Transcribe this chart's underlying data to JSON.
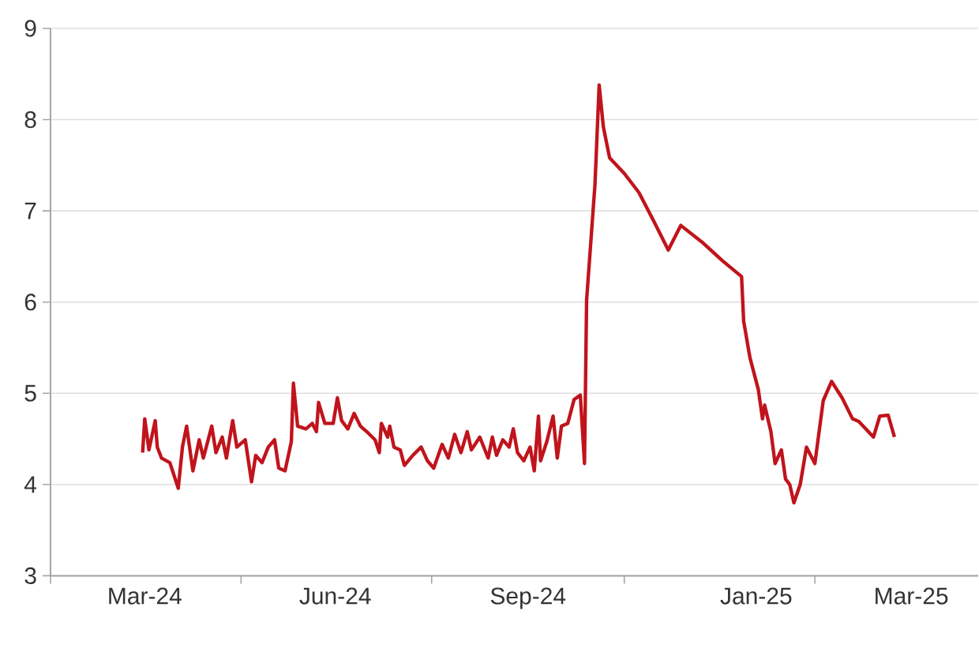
{
  "chart_data": {
    "type": "line",
    "x": [
      "2024-03-14",
      "2024-03-15",
      "2024-03-17",
      "2024-03-20",
      "2024-03-21",
      "2024-03-23",
      "2024-03-27",
      "2024-03-31",
      "2024-04-02",
      "2024-04-04",
      "2024-04-07",
      "2024-04-10",
      "2024-04-12",
      "2024-04-16",
      "2024-04-18",
      "2024-04-21",
      "2024-04-23",
      "2024-04-26",
      "2024-04-28",
      "2024-05-02",
      "2024-05-05",
      "2024-05-07",
      "2024-05-10",
      "2024-05-13",
      "2024-05-16",
      "2024-05-18",
      "2024-05-21",
      "2024-05-24",
      "2024-05-25",
      "2024-05-27",
      "2024-05-31",
      "2024-06-03",
      "2024-06-05",
      "2024-06-06",
      "2024-06-09",
      "2024-06-13",
      "2024-06-15",
      "2024-06-17",
      "2024-06-20",
      "2024-06-23",
      "2024-06-26",
      "2024-06-29",
      "2024-07-03",
      "2024-07-05",
      "2024-07-06",
      "2024-07-09",
      "2024-07-10",
      "2024-07-12",
      "2024-07-15",
      "2024-07-17",
      "2024-07-21",
      "2024-07-25",
      "2024-07-28",
      "2024-07-31",
      "2024-08-04",
      "2024-08-07",
      "2024-08-10",
      "2024-08-13",
      "2024-08-16",
      "2024-08-18",
      "2024-08-22",
      "2024-08-26",
      "2024-08-28",
      "2024-08-30",
      "2024-09-02",
      "2024-09-05",
      "2024-09-07",
      "2024-09-09",
      "2024-09-12",
      "2024-09-15",
      "2024-09-17",
      "2024-09-19",
      "2024-09-20",
      "2024-09-23",
      "2024-09-26",
      "2024-09-28",
      "2024-09-30",
      "2024-10-03",
      "2024-10-06",
      "2024-10-09",
      "2024-10-11",
      "2024-10-12",
      "2024-10-16",
      "2024-10-18",
      "2024-10-20",
      "2024-10-23",
      "2024-10-30",
      "2024-11-06",
      "2024-11-13",
      "2024-11-20",
      "2024-11-26",
      "2024-12-06",
      "2024-12-16",
      "2024-12-25",
      "2024-12-26",
      "2024-12-29",
      "2025-01-02",
      "2025-01-04",
      "2025-01-05",
      "2025-01-08",
      "2025-01-10",
      "2025-01-13",
      "2025-01-15",
      "2025-01-17",
      "2025-01-19",
      "2025-01-22",
      "2025-01-25",
      "2025-01-29",
      "2025-02-02",
      "2025-02-06",
      "2025-02-11",
      "2025-02-16",
      "2025-02-19",
      "2025-02-26",
      "2025-03-01",
      "2025-03-05",
      "2025-03-08"
    ],
    "values": [
      4.35,
      4.72,
      4.38,
      4.7,
      4.41,
      4.29,
      4.24,
      3.96,
      4.41,
      4.64,
      4.15,
      4.49,
      4.29,
      4.64,
      4.35,
      4.52,
      4.29,
      4.7,
      4.41,
      4.49,
      4.03,
      4.32,
      4.24,
      4.41,
      4.49,
      4.18,
      4.15,
      4.47,
      5.11,
      4.64,
      4.61,
      4.67,
      4.58,
      4.9,
      4.67,
      4.67,
      4.95,
      4.7,
      4.61,
      4.78,
      4.64,
      4.58,
      4.49,
      4.35,
      4.67,
      4.52,
      4.64,
      4.41,
      4.38,
      4.21,
      4.32,
      4.41,
      4.26,
      4.18,
      4.44,
      4.29,
      4.55,
      4.35,
      4.58,
      4.38,
      4.52,
      4.29,
      4.52,
      4.32,
      4.49,
      4.41,
      4.61,
      4.35,
      4.26,
      4.41,
      4.15,
      4.75,
      4.26,
      4.47,
      4.75,
      4.29,
      4.64,
      4.67,
      4.93,
      4.98,
      4.23,
      6.02,
      7.29,
      8.38,
      7.92,
      7.58,
      7.41,
      7.2,
      6.89,
      6.57,
      6.84,
      6.66,
      6.45,
      6.28,
      5.79,
      5.39,
      5.04,
      4.72,
      4.87,
      4.58,
      4.23,
      4.38,
      4.06,
      4.0,
      3.8,
      4.0,
      4.41,
      4.23,
      4.92,
      5.13,
      4.95,
      4.72,
      4.69,
      4.52,
      4.75,
      4.76,
      4.52
    ],
    "color": "#c0141c",
    "xlim": [
      "2024-01-30",
      "2025-04-17"
    ],
    "xticks": [
      {
        "value": "2024-01-30",
        "label": null
      },
      {
        "value": "2024-03-15",
        "label": "Mar-24"
      },
      {
        "value": "2024-04-30",
        "label": null
      },
      {
        "value": "2024-06-14",
        "label": "Jun-24"
      },
      {
        "value": "2024-07-30",
        "label": null
      },
      {
        "value": "2024-09-14",
        "label": "Sep-24"
      },
      {
        "value": "2024-10-30",
        "label": null
      },
      {
        "value": "2025-01-01",
        "label": "Jan-25"
      },
      {
        "value": "2025-01-29",
        "label": null
      },
      {
        "value": "2025-03-16",
        "label": "Mar-25"
      }
    ],
    "ylim": [
      3,
      9
    ],
    "yticks": [
      3,
      4,
      5,
      6,
      7,
      8,
      9
    ],
    "grid": "y",
    "marker": "none",
    "line_style": "solid"
  }
}
